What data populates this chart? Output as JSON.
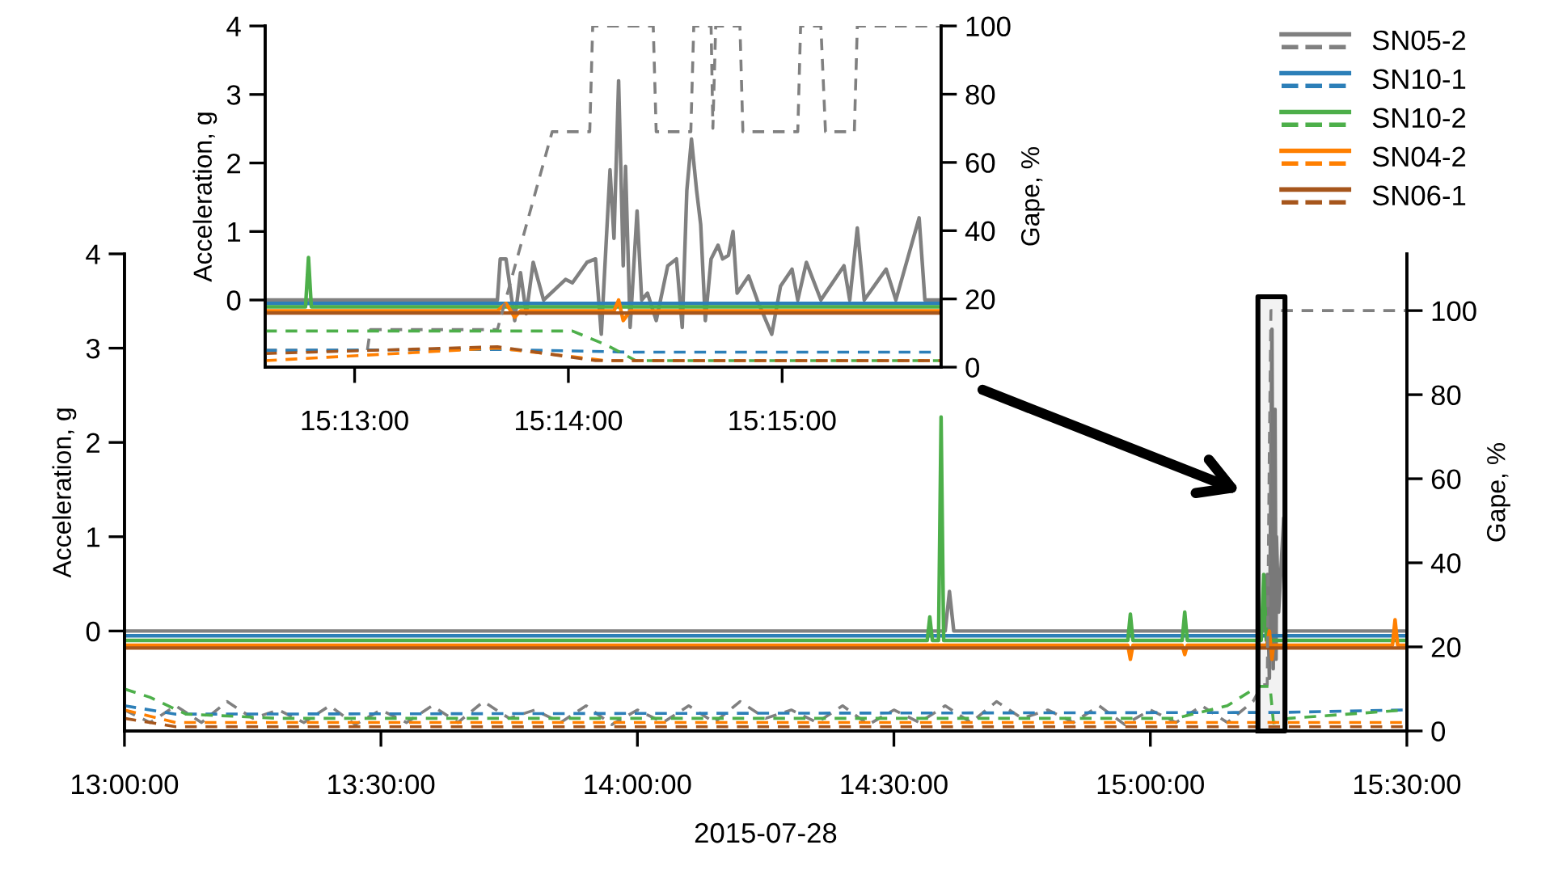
{
  "chart_data": [
    {
      "type": "line",
      "xlabel": "2015-07-28",
      "ylabel": "Acceleration, g",
      "y2label": "Gape, %",
      "legend": "top right",
      "xlim": [
        13.0,
        15.5
      ],
      "xticks": [
        {
          "value": 13.0,
          "label": "13:00:00"
        },
        {
          "value": 13.5,
          "label": "13:30:00"
        },
        {
          "value": 14.0,
          "label": "14:00:00"
        },
        {
          "value": 14.5,
          "label": "14:30:00"
        },
        {
          "value": 15.0,
          "label": "15:00:00"
        },
        {
          "value": 15.5,
          "label": "15:30:00"
        }
      ],
      "ylim": [
        -1.06,
        4
      ],
      "yticks": [
        0,
        1,
        2,
        3,
        4
      ],
      "y2lim": [
        0,
        113.5
      ],
      "y2ticks": [
        0,
        20,
        40,
        60,
        80,
        100
      ],
      "bands": [
        {
          "axis": "x",
          "from": 15.20969,
          "to": 15.26239,
          "color": "#000000"
        }
      ],
      "series": [
        {
          "name": "SN05-2",
          "color": "#808080",
          "x": [
            13.0,
            14.6,
            14.6083,
            14.6167,
            15.22,
            15.228,
            15.232,
            15.237,
            15.2395,
            15.243,
            15.245,
            15.2458,
            15.25,
            15.26,
            15.262,
            15.5
          ],
          "values": [
            0,
            0,
            0.42,
            0,
            0,
            0.6,
            -0.5,
            3.2,
            -0.4,
            2.35,
            -0.3,
            1.0,
            0.2,
            1.2,
            0,
            0
          ]
        },
        {
          "name": "SN10-1",
          "color": "#2c7fb8",
          "x": [
            13.0,
            15.5
          ],
          "values": [
            -0.05,
            -0.05
          ]
        },
        {
          "name": "SN10-2",
          "color": "#4daf4a",
          "x": [
            13.0,
            14.565,
            14.57,
            14.575,
            14.587,
            14.592,
            14.597,
            14.956,
            14.961,
            14.966,
            15.062,
            15.067,
            15.072,
            15.216,
            15.221,
            15.226,
            15.5
          ],
          "values": [
            -0.1,
            -0.1,
            0.15,
            -0.1,
            -0.1,
            2.27,
            -0.1,
            -0.1,
            0.18,
            -0.1,
            -0.1,
            0.2,
            -0.1,
            -0.1,
            0.6,
            -0.1,
            -0.1
          ]
        },
        {
          "name": "SN04-2",
          "color": "#ff7f00",
          "x": [
            13.0,
            14.956,
            14.961,
            14.966,
            15.062,
            15.067,
            15.072,
            15.227,
            15.232,
            15.237,
            15.24,
            15.472,
            15.477,
            15.482,
            15.5
          ],
          "values": [
            -0.15,
            -0.15,
            -0.3,
            -0.15,
            -0.15,
            -0.25,
            -0.15,
            -0.15,
            0,
            -0.3,
            -0.15,
            -0.15,
            0.12,
            -0.15,
            -0.15
          ]
        },
        {
          "name": "SN06-1",
          "color": "#a6561c",
          "x": [
            13.0,
            15.5
          ],
          "values": [
            -0.18,
            -0.18
          ]
        },
        {
          "axis": "y2",
          "line_style": "dashed",
          "color": "#808080",
          "x": [
            13.0,
            13.05,
            13.1,
            13.15,
            13.2,
            13.25,
            13.3,
            13.35,
            13.4,
            13.45,
            13.5,
            13.55,
            13.6,
            13.65,
            13.7,
            13.75,
            13.8,
            13.85,
            13.9,
            13.95,
            14.0,
            14.05,
            14.1,
            14.15,
            14.2,
            14.25,
            14.3,
            14.35,
            14.4,
            14.45,
            14.5,
            14.55,
            14.6,
            14.65,
            14.7,
            14.75,
            14.8,
            14.85,
            14.9,
            14.95,
            15.0,
            15.05,
            15.1,
            15.15,
            15.2,
            15.2178,
            15.2278,
            15.2321,
            15.235,
            15.5
          ],
          "values": [
            5,
            2,
            6,
            2,
            7,
            3,
            5,
            2,
            6,
            1.5,
            5,
            2,
            6,
            2,
            7,
            3,
            5,
            2,
            6,
            1.5,
            5,
            2,
            6,
            2,
            7,
            3,
            5,
            2,
            6,
            1.5,
            5,
            2,
            6,
            2,
            7,
            3,
            5,
            2,
            6,
            1.5,
            5,
            2,
            6,
            2,
            7,
            11,
            11,
            69,
            100,
            100
          ]
        },
        {
          "axis": "y2",
          "line_style": "dashed",
          "color": "#2c7fb8",
          "x": [
            13.0,
            13.1,
            15.25,
            15.5
          ],
          "values": [
            6,
            4,
            4.4,
            5
          ]
        },
        {
          "axis": "y2",
          "line_style": "dashed",
          "color": "#4daf4a",
          "x": [
            13.0,
            13.05,
            13.12,
            13.3,
            15.05,
            15.15,
            15.2096,
            15.2333,
            15.24,
            15.27,
            15.5
          ],
          "values": [
            10,
            8,
            4,
            3,
            3,
            6,
            10.6,
            10.6,
            1.9,
            3,
            5
          ]
        },
        {
          "axis": "y2",
          "line_style": "dashed",
          "color": "#ff7f00",
          "x": [
            13.0,
            13.1,
            15.5
          ],
          "values": [
            5,
            2,
            2
          ]
        },
        {
          "axis": "y2",
          "line_style": "dashed",
          "color": "#a6561c",
          "x": [
            13.0,
            13.1,
            15.5
          ],
          "values": [
            3,
            1,
            1
          ]
        }
      ]
    },
    {
      "type": "line",
      "ylabel": "Acceleration, g",
      "y2label": "Gape, %",
      "xlim": [
        15.20969,
        15.26239
      ],
      "xticks": [
        {
          "value": 15.216667,
          "label": "15:13:00"
        },
        {
          "value": 15.233333,
          "label": "15:14:00"
        },
        {
          "value": 15.25,
          "label": "15:15:00"
        }
      ],
      "ylim": [
        -0.98,
        4
      ],
      "yticks": [
        0,
        1,
        2,
        3,
        4
      ],
      "y2lim": [
        0,
        100
      ],
      "y2ticks": [
        0,
        20,
        40,
        60,
        80,
        100
      ],
      "series": [
        {
          "color": "#808080",
          "x": [
            15.20969,
            15.2278,
            15.22802,
            15.22847,
            15.22915,
            15.2296,
            15.23005,
            15.23059,
            15.2314,
            15.23311,
            15.23365,
            15.23478,
            15.23545,
            15.2359,
            15.23658,
            15.23689,
            15.23725,
            15.23761,
            15.23779,
            15.23815,
            15.23869,
            15.23905,
            15.2395,
            15.24018,
            15.24108,
            15.24176,
            15.24221,
            15.24257,
            15.24293,
            15.24333,
            15.24365,
            15.24401,
            15.24446,
            15.245,
            15.24536,
            15.24581,
            15.24617,
            15.24649,
            15.24739,
            15.24806,
            15.24919,
            15.24987,
            15.25077,
            15.25122,
            15.25189,
            15.25302,
            15.25482,
            15.25527,
            15.25586,
            15.2564,
            15.25811,
            15.25887,
            15.26068,
            15.26113,
            15.26239
          ],
          "values": [
            0,
            0,
            0.6,
            0.6,
            -0.3,
            0.4,
            -0.2,
            0.55,
            0,
            0.3,
            0.25,
            0.55,
            0.6,
            -0.5,
            1.9,
            0.9,
            3.2,
            0.5,
            1.95,
            -0.4,
            1.3,
            0,
            0.1,
            -0.3,
            0.5,
            0.6,
            -0.4,
            1.6,
            2.35,
            1.6,
            1.1,
            -0.3,
            0.6,
            0.8,
            0.6,
            0.65,
            1.0,
            0.1,
            0.35,
            0,
            -0.5,
            0.2,
            0.45,
            0,
            0.55,
            0,
            0.5,
            0,
            1.05,
            0,
            0.45,
            0,
            1.2,
            0,
            0
          ]
        },
        {
          "color": "#2c7fb8",
          "x": [
            15.20969,
            15.26239
          ],
          "values": [
            -0.05,
            -0.05
          ]
        },
        {
          "color": "#4daf4a",
          "x": [
            15.20969,
            15.21284,
            15.21307,
            15.21329,
            15.26239
          ],
          "values": [
            -0.1,
            -0.1,
            0.62,
            -0.1,
            -0.1
          ]
        },
        {
          "color": "#ff7f00",
          "x": [
            15.20969,
            15.2278,
            15.22847,
            15.22915,
            15.2296,
            15.23689,
            15.23725,
            15.23761,
            15.23815,
            15.26239
          ],
          "values": [
            -0.16,
            -0.16,
            -0.05,
            -0.25,
            -0.16,
            -0.16,
            0,
            -0.3,
            -0.16,
            -0.16
          ]
        },
        {
          "color": "#a6561c",
          "x": [
            15.20969,
            15.26239
          ],
          "values": [
            -0.19,
            -0.19
          ]
        },
        {
          "axis": "y2",
          "line_style": "dashed",
          "color": "#808080",
          "x": [
            15.20969,
            15.21766,
            15.21789,
            15.2278,
            15.23207,
            15.235,
            15.23523,
            15.23995,
            15.24018,
            15.24288,
            15.24311,
            15.24446,
            15.2446,
            15.24482,
            15.24671,
            15.24694,
            15.25122,
            15.25144,
            15.25302,
            15.25338,
            15.25563,
            15.25586,
            15.26239
          ],
          "values": [
            5,
            5,
            11,
            11,
            69,
            69,
            100,
            100,
            69,
            69,
            100,
            100,
            70,
            100,
            100,
            69,
            69,
            100,
            100,
            69,
            69,
            100,
            100
          ]
        },
        {
          "axis": "y2",
          "line_style": "dashed",
          "color": "#2c7fb8",
          "x": [
            15.20969,
            15.2278,
            15.23815,
            15.26239
          ],
          "values": [
            4.9,
            5.2,
            4.4,
            4.4
          ]
        },
        {
          "axis": "y2",
          "line_style": "dashed",
          "color": "#4daf4a",
          "x": [
            15.20969,
            15.23365,
            15.23635,
            15.2386,
            15.26239
          ],
          "values": [
            10.6,
            10.6,
            6.4,
            1.9,
            1.9
          ]
        },
        {
          "axis": "y2",
          "line_style": "dashed",
          "color": "#ff7f00",
          "x": [
            15.20969,
            15.2278,
            15.23635,
            15.26239
          ],
          "values": [
            1.9,
            5.6,
            1.9,
            1.9
          ]
        },
        {
          "axis": "y2",
          "line_style": "dashed",
          "color": "#a6561c",
          "x": [
            15.20969,
            15.2278,
            15.23545,
            15.26239
          ],
          "values": [
            4,
            6,
            1.9,
            1.9
          ]
        }
      ]
    }
  ]
}
